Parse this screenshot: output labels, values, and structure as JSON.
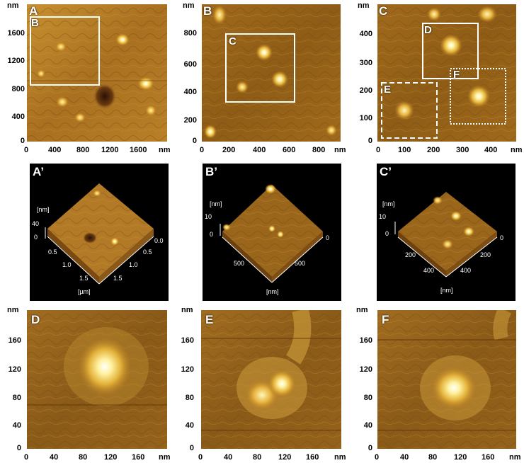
{
  "panels": {
    "A": {
      "label": "A",
      "unit": "nm",
      "yticks": [
        "1600",
        "1200",
        "800",
        "400",
        "0"
      ],
      "xticks": [
        "0",
        "400",
        "800",
        "1200",
        "1600"
      ],
      "inset_label": "B"
    },
    "B": {
      "label": "B",
      "unit": "nm",
      "yticks": [
        "800",
        "600",
        "400",
        "200",
        "0"
      ],
      "xticks": [
        "0",
        "200",
        "400",
        "600",
        "800"
      ],
      "inset_label": "C"
    },
    "C": {
      "label": "C",
      "unit": "nm",
      "yticks": [
        "400",
        "300",
        "200",
        "100",
        "0"
      ],
      "xticks": [
        "0",
        "100",
        "200",
        "300",
        "400"
      ],
      "inset_labels": [
        "D",
        "E",
        "F"
      ]
    },
    "D": {
      "label": "D",
      "unit": "nm",
      "yticks": [
        "160",
        "120",
        "80",
        "40",
        "0"
      ],
      "xticks": [
        "0",
        "40",
        "80",
        "120",
        "160"
      ]
    },
    "E": {
      "label": "E",
      "unit": "nm",
      "yticks": [
        "160",
        "120",
        "80",
        "40",
        "0"
      ],
      "xticks": [
        "0",
        "40",
        "80",
        "120",
        "160"
      ]
    },
    "F": {
      "label": "F",
      "unit": "nm",
      "yticks": [
        "160",
        "120",
        "80",
        "40",
        "0"
      ],
      "xticks": [
        "0",
        "40",
        "80",
        "120",
        "160"
      ]
    }
  },
  "panels3d": {
    "A": {
      "label": "A’",
      "z_label": "40",
      "z_unit": "[nm]",
      "z_zero": "0",
      "left_ticks": [
        "0.5",
        "1.0",
        "1.5"
      ],
      "right_ticks": [
        "0.0",
        "0.5",
        "1.0",
        "1.5"
      ],
      "axis_unit": "[µm]"
    },
    "B": {
      "label": "B’",
      "z_label": "10",
      "z_unit": "[nm]",
      "z_zero": "0",
      "left_ticks": [
        "500"
      ],
      "right_ticks": [
        "0",
        "500"
      ],
      "axis_unit": "[nm]"
    },
    "C": {
      "label": "C’",
      "z_label": "10",
      "z_unit": "[nm]",
      "z_zero": "0",
      "left_ticks": [
        "200",
        "400"
      ],
      "right_ticks": [
        "0",
        "200",
        "400"
      ],
      "axis_unit": "[nm]"
    }
  },
  "colors": {
    "afm_dark": "#5a3208",
    "afm_mid": "#a8701e",
    "afm_light": "#ffe98a",
    "background_3d": "#000000"
  }
}
